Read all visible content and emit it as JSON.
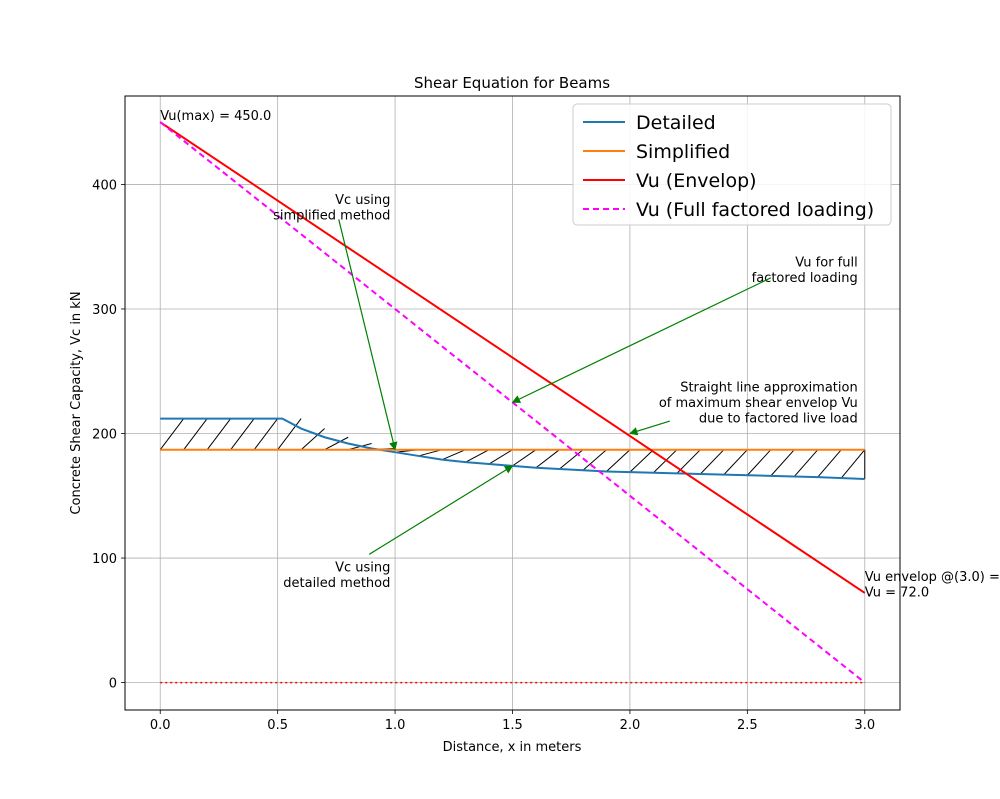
{
  "chart_data": {
    "type": "line",
    "title": "Shear Equation for Beams",
    "xlabel": "Distance, x in meters",
    "ylabel": "Concrete Shear Capacity, Vc in kN",
    "xlim": [
      -0.15,
      3.15
    ],
    "ylim": [
      -22,
      471
    ],
    "grid": true,
    "legend_position": "top-right",
    "x_ticks": [
      0.0,
      0.5,
      1.0,
      1.5,
      2.0,
      2.5,
      3.0
    ],
    "x_tick_labels": [
      "0.0",
      "0.5",
      "1.0",
      "1.5",
      "2.0",
      "2.5",
      "3.0"
    ],
    "y_ticks": [
      0,
      100,
      200,
      300,
      400
    ],
    "y_tick_labels": [
      "0",
      "100",
      "200",
      "300",
      "400"
    ],
    "series": [
      {
        "name": "Detailed",
        "color": "#1f77b4",
        "style": "solid",
        "x": [
          0.0,
          0.1,
          0.2,
          0.3,
          0.4,
          0.52,
          0.6,
          0.7,
          0.8,
          0.9,
          1.0,
          1.1,
          1.2,
          1.3,
          1.4,
          1.5,
          1.6,
          1.7,
          1.8,
          1.9,
          2.0,
          2.2,
          2.4,
          2.6,
          2.8,
          3.0
        ],
        "y": [
          212,
          212,
          212,
          212,
          212,
          212,
          204,
          197,
          192,
          188,
          185,
          182,
          179,
          177,
          175.5,
          174,
          172.5,
          171.5,
          170.5,
          169.5,
          169,
          168,
          167,
          166,
          165,
          163.5
        ]
      },
      {
        "name": "Simplified",
        "color": "#ff7f0e",
        "style": "solid",
        "x": [
          0.0,
          3.0
        ],
        "y": [
          187,
          187
        ]
      },
      {
        "name": "Vu (Envelop)",
        "color": "#ff0000",
        "style": "solid",
        "x": [
          0.0,
          3.0
        ],
        "y": [
          450,
          72
        ]
      },
      {
        "name": "Vu (Full factored loading)",
        "color": "#ff00ff",
        "style": "dashed",
        "x": [
          0.0,
          3.0
        ],
        "y": [
          450,
          0
        ]
      },
      {
        "name": "",
        "color": "#ff0000",
        "style": "dotted",
        "x": [
          0.0,
          3.0
        ],
        "y": [
          0,
          0
        ]
      }
    ],
    "annotations": [
      {
        "lines": [
          "Vu(max) = 450.0"
        ],
        "x": 0.0,
        "y": 450,
        "anchor": "start"
      },
      {
        "lines": [
          "Vc using",
          "simplified method"
        ],
        "x": 1.0,
        "y": 187,
        "text_x": 0.98,
        "text_y": 375,
        "anchor": "end"
      },
      {
        "lines": [
          "Vu for full",
          "factored loading"
        ],
        "x": 1.5,
        "y": 225,
        "text_x": 2.97,
        "text_y": 325,
        "anchor": "end"
      },
      {
        "lines": [
          "Straight line approximation",
          "of maximum shear envelop Vu",
          "due to factored live load"
        ],
        "x": 2.0,
        "y": 200,
        "text_x": 2.97,
        "text_y": 212,
        "anchor": "end"
      },
      {
        "lines": [
          "Vc using",
          "detailed method"
        ],
        "x": 1.5,
        "y": 174,
        "text_x": 0.98,
        "text_y": 80,
        "anchor": "end"
      },
      {
        "lines": [
          "Vu envelop @(3.0) =",
          "Vu = 72.0"
        ],
        "x": 3.0,
        "y": 72,
        "anchor": "start"
      }
    ]
  }
}
